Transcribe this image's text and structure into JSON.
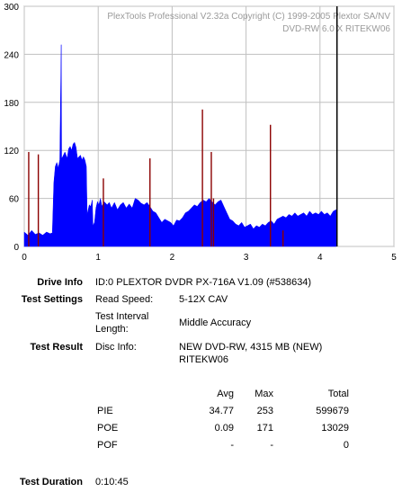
{
  "chart_data": {
    "type": "area",
    "watermark_line1": "PlexTools Professional V2.32a Copyright (C) 1999-2005 Plextor SA/NV",
    "watermark_line2": "DVD-RW   6.0 X   RITEKW06",
    "xlim": [
      0,
      5
    ],
    "ylim": [
      0,
      300
    ],
    "x_ticks": [
      "0",
      "1",
      "2",
      "3",
      "4",
      "5"
    ],
    "y_ticks": [
      "0",
      "60",
      "120",
      "180",
      "240",
      "300"
    ],
    "grid": true,
    "data_end_x": 4.23,
    "colors": {
      "pie": "#0000ff",
      "poe": "#8b0000",
      "grid": "#c0c0c0",
      "end_marker": "#000000"
    },
    "series": [
      {
        "name": "PIE",
        "color": "#0000ff",
        "points": [
          [
            0.0,
            18
          ],
          [
            0.05,
            14
          ],
          [
            0.1,
            20
          ],
          [
            0.15,
            15
          ],
          [
            0.2,
            17
          ],
          [
            0.25,
            14
          ],
          [
            0.3,
            18
          ],
          [
            0.35,
            16
          ],
          [
            0.38,
            17
          ],
          [
            0.39,
            50
          ],
          [
            0.4,
            80
          ],
          [
            0.42,
            100
          ],
          [
            0.44,
            105
          ],
          [
            0.46,
            98
          ],
          [
            0.48,
            108
          ],
          [
            0.5,
            252
          ],
          [
            0.505,
            110
          ],
          [
            0.52,
            112
          ],
          [
            0.55,
            118
          ],
          [
            0.58,
            110
          ],
          [
            0.6,
            122
          ],
          [
            0.62,
            125
          ],
          [
            0.64,
            120
          ],
          [
            0.66,
            128
          ],
          [
            0.68,
            130
          ],
          [
            0.7,
            124
          ],
          [
            0.72,
            110
          ],
          [
            0.74,
            112
          ],
          [
            0.76,
            114
          ],
          [
            0.78,
            108
          ],
          [
            0.8,
            112
          ],
          [
            0.82,
            108
          ],
          [
            0.84,
            100
          ],
          [
            0.85,
            40
          ],
          [
            0.88,
            52
          ],
          [
            0.9,
            50
          ],
          [
            0.92,
            58
          ],
          [
            0.93,
            26
          ],
          [
            0.95,
            30
          ],
          [
            0.97,
            48
          ],
          [
            0.99,
            56
          ],
          [
            1.01,
            52
          ],
          [
            1.03,
            60
          ],
          [
            1.05,
            50
          ],
          [
            1.08,
            56
          ],
          [
            1.12,
            52
          ],
          [
            1.15,
            55
          ],
          [
            1.18,
            48
          ],
          [
            1.22,
            55
          ],
          [
            1.26,
            46
          ],
          [
            1.3,
            52
          ],
          [
            1.34,
            55
          ],
          [
            1.38,
            48
          ],
          [
            1.42,
            53
          ],
          [
            1.46,
            48
          ],
          [
            1.5,
            60
          ],
          [
            1.54,
            58
          ],
          [
            1.58,
            54
          ],
          [
            1.62,
            52
          ],
          [
            1.66,
            55
          ],
          [
            1.7,
            50
          ],
          [
            1.74,
            44
          ],
          [
            1.78,
            42
          ],
          [
            1.82,
            36
          ],
          [
            1.86,
            30
          ],
          [
            1.9,
            34
          ],
          [
            1.94,
            32
          ],
          [
            1.98,
            30
          ],
          [
            2.02,
            26
          ],
          [
            2.06,
            33
          ],
          [
            2.1,
            32
          ],
          [
            2.14,
            36
          ],
          [
            2.18,
            42
          ],
          [
            2.22,
            44
          ],
          [
            2.26,
            48
          ],
          [
            2.3,
            52
          ],
          [
            2.34,
            50
          ],
          [
            2.38,
            55
          ],
          [
            2.42,
            58
          ],
          [
            2.46,
            56
          ],
          [
            2.5,
            60
          ],
          [
            2.54,
            56
          ],
          [
            2.58,
            52
          ],
          [
            2.62,
            56
          ],
          [
            2.66,
            58
          ],
          [
            2.7,
            50
          ],
          [
            2.74,
            42
          ],
          [
            2.78,
            34
          ],
          [
            2.82,
            32
          ],
          [
            2.86,
            28
          ],
          [
            2.9,
            26
          ],
          [
            2.94,
            30
          ],
          [
            2.98,
            24
          ],
          [
            3.02,
            26
          ],
          [
            3.06,
            28
          ],
          [
            3.1,
            22
          ],
          [
            3.14,
            26
          ],
          [
            3.18,
            24
          ],
          [
            3.22,
            28
          ],
          [
            3.26,
            26
          ],
          [
            3.3,
            30
          ],
          [
            3.34,
            32
          ],
          [
            3.38,
            28
          ],
          [
            3.42,
            34
          ],
          [
            3.46,
            36
          ],
          [
            3.5,
            38
          ],
          [
            3.54,
            36
          ],
          [
            3.58,
            40
          ],
          [
            3.62,
            38
          ],
          [
            3.66,
            42
          ],
          [
            3.7,
            38
          ],
          [
            3.74,
            40
          ],
          [
            3.78,
            42
          ],
          [
            3.82,
            38
          ],
          [
            3.86,
            44
          ],
          [
            3.9,
            40
          ],
          [
            3.94,
            42
          ],
          [
            3.98,
            40
          ],
          [
            4.02,
            44
          ],
          [
            4.06,
            40
          ],
          [
            4.1,
            42
          ],
          [
            4.14,
            38
          ],
          [
            4.18,
            44
          ],
          [
            4.22,
            46
          ]
        ]
      },
      {
        "name": "POE",
        "color": "#8b0000",
        "spikes": [
          [
            0.06,
            118
          ],
          [
            0.19,
            115
          ],
          [
            1.07,
            85
          ],
          [
            1.7,
            110
          ],
          [
            2.41,
            171
          ],
          [
            2.53,
            118
          ],
          [
            2.56,
            60
          ],
          [
            3.33,
            152
          ],
          [
            3.5,
            20
          ]
        ]
      }
    ]
  },
  "info": {
    "drive_info_label": "Drive Info",
    "drive_info_value": "ID:0 PLEXTOR DVDR PX-716A V1.09 (#538634)",
    "test_settings_label": "Test Settings",
    "read_speed_label": "Read Speed:",
    "read_speed_value": "5-12X CAV",
    "interval_label_line1": "Test Interval",
    "interval_label_line2": "Length:",
    "interval_value": "Middle Accuracy",
    "test_result_label": "Test Result",
    "disc_info_label": "Disc Info:",
    "disc_info_line1": "NEW DVD-RW, 4315 MB (NEW)",
    "disc_info_line2": "RITEKW06",
    "col_avg": "Avg",
    "col_max": "Max",
    "col_total": "Total",
    "rows": [
      {
        "label": "PIE",
        "avg": "34.77",
        "max": "253",
        "total": "599679"
      },
      {
        "label": "POE",
        "avg": "0.09",
        "max": "171",
        "total": "13029"
      },
      {
        "label": "POF",
        "avg": "-",
        "max": "-",
        "total": "0"
      }
    ],
    "duration_label": "Test Duration",
    "duration_value": "0:10:45"
  }
}
